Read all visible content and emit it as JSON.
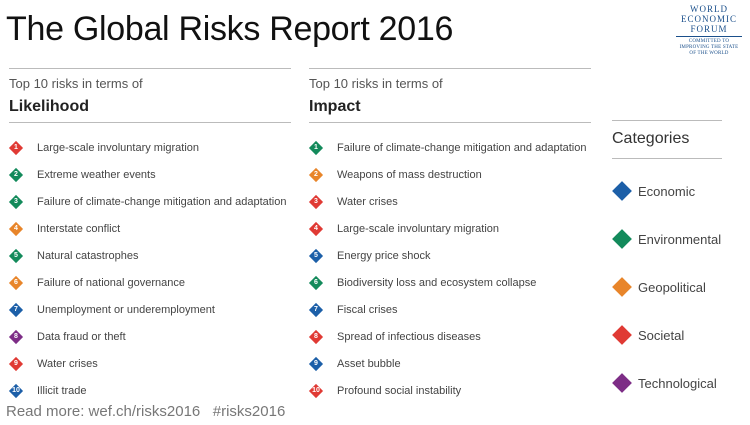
{
  "title": "The Global Risks Report 2016",
  "logo": {
    "line1": "WORLD",
    "line2": "ECONOMIC",
    "line3": "FORUM",
    "tagline1": "COMMITTED TO",
    "tagline2": "IMPROVING THE STATE",
    "tagline3": "OF THE WORLD"
  },
  "colors": {
    "economic": "#1c5fa8",
    "environmental": "#138a5b",
    "geopolitical": "#e8852a",
    "societal": "#e03a34",
    "technological": "#7d2d86"
  },
  "likelihood": {
    "subtitle": "Top 10 risks in terms of",
    "heading": "Likelihood",
    "items": [
      {
        "num": "1",
        "label": "Large-scale involuntary migration",
        "category": "societal"
      },
      {
        "num": "2",
        "label": "Extreme weather events",
        "category": "environmental"
      },
      {
        "num": "3",
        "label": "Failure of climate-change mitigation and adaptation",
        "category": "environmental"
      },
      {
        "num": "4",
        "label": "Interstate conflict",
        "category": "geopolitical"
      },
      {
        "num": "5",
        "label": "Natural catastrophes",
        "category": "environmental"
      },
      {
        "num": "6",
        "label": "Failure of national governance",
        "category": "geopolitical"
      },
      {
        "num": "7",
        "label": "Unemployment or underemployment",
        "category": "economic"
      },
      {
        "num": "8",
        "label": "Data fraud or theft",
        "category": "technological"
      },
      {
        "num": "9",
        "label": "Water crises",
        "category": "societal"
      },
      {
        "num": "10",
        "label": "Illicit trade",
        "category": "economic"
      }
    ]
  },
  "impact": {
    "subtitle": "Top 10 risks in terms of",
    "heading": "Impact",
    "items": [
      {
        "num": "1",
        "label": "Failure of climate-change mitigation and adaptation",
        "category": "environmental"
      },
      {
        "num": "2",
        "label": "Weapons of mass destruction",
        "category": "geopolitical"
      },
      {
        "num": "3",
        "label": "Water crises",
        "category": "societal"
      },
      {
        "num": "4",
        "label": "Large-scale involuntary migration",
        "category": "societal"
      },
      {
        "num": "5",
        "label": "Energy price shock",
        "category": "economic"
      },
      {
        "num": "6",
        "label": "Biodiversity loss and ecosystem collapse",
        "category": "environmental"
      },
      {
        "num": "7",
        "label": "Fiscal crises",
        "category": "economic"
      },
      {
        "num": "8",
        "label": "Spread of infectious diseases",
        "category": "societal"
      },
      {
        "num": "9",
        "label": "Asset bubble",
        "category": "economic"
      },
      {
        "num": "10",
        "label": "Profound social instability",
        "category": "societal"
      }
    ]
  },
  "categories": {
    "heading": "Categories",
    "items": [
      {
        "label": "Economic",
        "category": "economic"
      },
      {
        "label": "Environmental",
        "category": "environmental"
      },
      {
        "label": "Geopolitical",
        "category": "geopolitical"
      },
      {
        "label": "Societal",
        "category": "societal"
      },
      {
        "label": "Technological",
        "category": "technological"
      }
    ]
  },
  "footer": "Read more: wef.ch/risks2016   #risks2016"
}
